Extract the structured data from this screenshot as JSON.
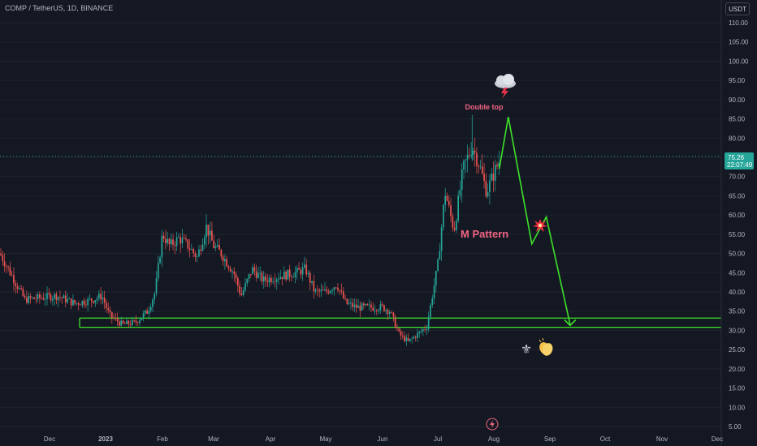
{
  "header": {
    "title": "COMP / TetherUS, 1D, BINANCE"
  },
  "unit_button": {
    "label": "USDT"
  },
  "price_tag": {
    "price": "75.26",
    "countdown": "22:07:49"
  },
  "annotations": {
    "double_top": "Double top",
    "pattern": "M Pattern"
  },
  "colors": {
    "background": "#141823",
    "up": "#26a69a",
    "down": "#ef5350",
    "projection": "#3ee22a",
    "annotation": "#f06582",
    "grid": "#1f232e"
  },
  "icons": [
    "storm-cloud-icon",
    "burst-icon",
    "fleur-de-lis-icon",
    "clapping-hands-icon",
    "lightning-circle-icon"
  ],
  "chart_data": {
    "type": "candlestick",
    "x_axis": {
      "ticks": [
        "Dec",
        "2023",
        "Feb",
        "Mar",
        "Apr",
        "May",
        "Jun",
        "Jul",
        "Aug",
        "Sep",
        "Oct",
        "Nov",
        "Dec"
      ]
    },
    "y_axis": {
      "range": [
        5,
        110
      ],
      "ticks": [
        "5.00",
        "10.00",
        "15.00",
        "20.00",
        "25.00",
        "30.00",
        "35.00",
        "40.00",
        "45.00",
        "50.00",
        "55.00",
        "60.00",
        "65.00",
        "70.00",
        "75.00",
        "80.00",
        "85.00",
        "90.00",
        "95.00",
        "100.00",
        "105.00",
        "110.00"
      ]
    },
    "last_price": 75.26,
    "support_zone": {
      "upper": 33.2,
      "lower": 30.8
    },
    "price_path": [
      [
        "Nov 19",
        50
      ],
      [
        "Nov 25",
        38
      ],
      [
        "Dec 5",
        39
      ],
      [
        "Dec 15",
        37
      ],
      [
        "Dec 25",
        38
      ],
      [
        "Dec 30",
        39
      ],
      [
        "Jan 3",
        34
      ],
      [
        "Jan 10",
        31.5
      ],
      [
        "Jan 17",
        32
      ],
      [
        "Jan 24",
        35
      ],
      [
        "Jan 28",
        40
      ],
      [
        "Feb 1",
        55
      ],
      [
        "Feb 5",
        52
      ],
      [
        "Feb 10",
        54
      ],
      [
        "Feb 15",
        52
      ],
      [
        "Feb 20",
        49
      ],
      [
        "Feb 25",
        57
      ],
      [
        "Mar 1",
        52
      ],
      [
        "Mar 5",
        50
      ],
      [
        "Mar 12",
        45
      ],
      [
        "Mar 16",
        39
      ],
      [
        "Mar 22",
        46
      ],
      [
        "Mar 28",
        43
      ],
      [
        "Apr 5",
        44
      ],
      [
        "Apr 15",
        45
      ],
      [
        "Apr 20",
        46
      ],
      [
        "Apr 25",
        40
      ],
      [
        "May 1",
        40
      ],
      [
        "May 7",
        42
      ],
      [
        "May 12",
        37
      ],
      [
        "May 18",
        36
      ],
      [
        "May 25",
        36
      ],
      [
        "Jun 1",
        36
      ],
      [
        "Jun 5",
        35
      ],
      [
        "Jun 10",
        29
      ],
      [
        "Jun 15",
        27
      ],
      [
        "Jun 20",
        29
      ],
      [
        "Jun 25",
        31
      ],
      [
        "Jul 1",
        47
      ],
      [
        "Jul 5",
        66
      ],
      [
        "Jul 10",
        56
      ],
      [
        "Jul 15",
        72
      ],
      [
        "Jul 20",
        78
      ],
      [
        "Jul 24",
        73
      ],
      [
        "Jul 28",
        66
      ],
      [
        "Aug 2",
        72
      ],
      [
        "Aug 4",
        74
      ]
    ],
    "projection": [
      [
        "Aug 4",
        72
      ],
      [
        "Aug 9",
        85.5
      ],
      [
        "Aug 22",
        52.5
      ],
      [
        "Aug 30",
        59.5
      ],
      [
        "Sep 12",
        31.5
      ]
    ]
  }
}
